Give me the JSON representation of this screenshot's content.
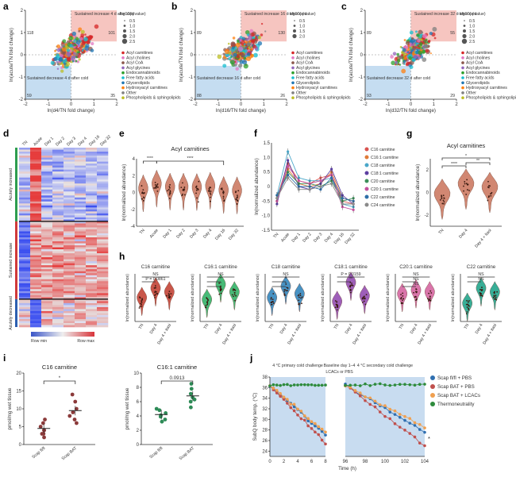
{
  "panel_labels": [
    "a",
    "b",
    "c",
    "d",
    "e",
    "f",
    "g",
    "h",
    "i",
    "j"
  ],
  "colors": {
    "acyl_carnitines": "#d62728",
    "acyl_cholines": "#e377c2",
    "acyl_coa": "#8c564b",
    "acyl_glycines": "#9467bd",
    "endocannabinoids": "#2ca02c",
    "free_fatty_acids": "#17becf",
    "glycerolipids": "#1f77b4",
    "hydroxyacyl_carnitines": "#ff7f0e",
    "other": "#7f7f7f",
    "phospholipids": "#bcbd22",
    "violin": "#c9735a",
    "sustained_box": "#f4b6b0",
    "decrease_box": "#b7d5ee",
    "cold_shade": "#c8dcf0"
  },
  "scatter_panels": [
    {
      "id": "a",
      "xlabel": "ln(d4/TN fold change)",
      "ylabel": "ln(acute/TN fold change)",
      "increase_label": "Sustained increase 4 d after cold",
      "decrease_label": "Sustained decrease 4 d after cold",
      "q_title": "-log10(q value)",
      "q_sizes": [
        "0.5",
        "1.0",
        "1.5",
        "2.0",
        "2.5"
      ],
      "counts": [
        "118",
        "101",
        "59",
        "35"
      ],
      "xticks": [
        "-2",
        "-1",
        "0",
        "1",
        "2"
      ],
      "yticks": [
        "-2",
        "-1",
        "0",
        "1",
        "2"
      ]
    },
    {
      "id": "b",
      "xlabel": "ln(d16/TN fold change)",
      "ylabel": "ln(acute/TN fold change)",
      "increase_label": "Sustained increase 16 d after cold",
      "decrease_label": "Sustained decrease 16 d after cold",
      "q_title": "-log10(q value)",
      "q_sizes": [
        "0.5",
        "1.0",
        "1.5",
        "2.0"
      ],
      "counts": [
        "89",
        "130",
        "88",
        "26"
      ],
      "xticks": [
        "-2",
        "-1",
        "0",
        "1",
        "2"
      ],
      "yticks": [
        "-2",
        "-1",
        "0",
        "1",
        "2"
      ]
    },
    {
      "id": "c",
      "xlabel": "ln(d32/TN fold change)",
      "ylabel": "ln(acute/TN fold change)",
      "increase_label": "Sustained increase 32 d after cold",
      "decrease_label": "Sustained decrease 32 d after cold",
      "q_title": "-log10(q value)",
      "q_sizes": [
        "0.5",
        "1.0",
        "1.5",
        "2.0",
        "2.5"
      ],
      "counts": [
        "89",
        "55",
        "93",
        "29"
      ],
      "xticks": [
        "-2",
        "-1",
        "0",
        "1",
        "2"
      ],
      "yticks": [
        "-2",
        "-1",
        "0",
        "1",
        "2"
      ]
    }
  ],
  "scatter_legend": [
    "Acyl carnitines",
    "Acyl cholines",
    "Acyl CoA",
    "Acyl glycines",
    "Endocannabinoids",
    "Free fatty acids",
    "Glycerolipids",
    "Hydroxyacyl carnitines",
    "Other",
    "Phospholipids & sphingolipids"
  ],
  "heatmap": {
    "columns": [
      "TN",
      "Acute",
      "Day 1",
      "Day 2",
      "Day 3",
      "Day 4",
      "Day 16",
      "Day 32"
    ],
    "groups": [
      "Acutely increased",
      "Sustained increase",
      "Acutely decreased"
    ],
    "legend_min": "Row min",
    "legend_max": "Row max"
  },
  "panel_e": {
    "title": "Acyl carnitines",
    "ylabel": "ln(normalized abundance)",
    "categories": [
      "TN",
      "Acute",
      "Day 1",
      "Day 2",
      "Day 3",
      "Day 4",
      "Day 16",
      "Day 32"
    ],
    "means": [
      -0.1,
      0.45,
      0.1,
      0.1,
      0.05,
      0.2,
      -0.3,
      -0.35
    ],
    "sig": [
      "****",
      "****"
    ],
    "yticks": [
      "-4",
      "-2",
      "0",
      "2",
      "4"
    ]
  },
  "panel_f": {
    "ylabel": "ln(normalized abundance)",
    "categories": [
      "TN",
      "Acute",
      "Day 1",
      "Day 2",
      "Day 3",
      "Day 4",
      "Day 16",
      "Day 32"
    ],
    "yticks": [
      "-1.5",
      "-1.0",
      "-0.5",
      "0",
      "0.5",
      "1.0",
      "1.5"
    ],
    "series": [
      {
        "name": "C16 carnitine",
        "values": [
          -0.4,
          0.8,
          0.2,
          0.1,
          0.3,
          0.4,
          -0.5,
          -0.6
        ]
      },
      {
        "name": "C16:1 carnitine",
        "values": [
          -0.5,
          0.6,
          0.1,
          0.0,
          0.1,
          0.5,
          -0.4,
          -0.5
        ]
      },
      {
        "name": "C18 carnitine",
        "values": [
          -0.3,
          1.2,
          0.3,
          0.2,
          0.2,
          0.3,
          -0.6,
          -0.7
        ]
      },
      {
        "name": "C18:1 carnitine",
        "values": [
          -0.6,
          0.9,
          0.0,
          -0.1,
          0.1,
          0.6,
          -0.3,
          -0.6
        ]
      },
      {
        "name": "C20 carnitine",
        "values": [
          -0.4,
          0.5,
          0.1,
          0.1,
          0.0,
          0.2,
          -0.5,
          -0.4
        ]
      },
      {
        "name": "C20:1 carnitine",
        "values": [
          -0.5,
          0.7,
          0.2,
          0.1,
          0.2,
          0.4,
          -0.7,
          -0.8
        ]
      },
      {
        "name": "C22 carnitine",
        "values": [
          -0.3,
          0.4,
          0.0,
          0.0,
          -0.1,
          0.3,
          -0.4,
          -0.5
        ]
      },
      {
        "name": "C24 carnitine",
        "values": [
          -0.4,
          0.3,
          -0.1,
          -0.1,
          0.0,
          0.1,
          -0.6,
          -0.6
        ]
      }
    ],
    "series_colors": [
      "#d9534f",
      "#e07b39",
      "#4aa7c9",
      "#5c3fa0",
      "#3d8f5a",
      "#c4509d",
      "#2e6fa8",
      "#8a8a8a"
    ]
  },
  "panel_g": {
    "title": "Acyl carnitines",
    "ylabel": "ln(normalized abundance)",
    "categories": [
      "TN",
      "Day 4",
      "Day 4 + Itasi"
    ],
    "means": [
      -0.6,
      0.3,
      0.0
    ],
    "sig": [
      "****",
      "**",
      "*"
    ],
    "yticks": [
      "-2",
      "0",
      "2"
    ]
  },
  "panel_h": {
    "ylabel": "ln(normalized abundance)",
    "categories": [
      "TN",
      "Day 4",
      "Day 4 + Itasi"
    ],
    "subplots": [
      {
        "title": "C16 carnitine",
        "color": "#c0392b",
        "means": [
          -0.2,
          0.3,
          0.1
        ],
        "sig": [
          "NS",
          "P = 0.0861"
        ]
      },
      {
        "title": "C16:1 carnitine",
        "color": "#27ae60",
        "means": [
          -0.3,
          0.5,
          0.1
        ],
        "sig": [
          "NS",
          "*",
          "*"
        ]
      },
      {
        "title": "C18 carnitine",
        "color": "#2980b9",
        "means": [
          -0.2,
          0.4,
          0.0
        ],
        "sig": [
          "NS",
          "*",
          "*"
        ]
      },
      {
        "title": "C18:1 carnitine",
        "color": "#8e44ad",
        "means": [
          -0.4,
          0.6,
          -0.1
        ],
        "sig": [
          "P = 0.0159",
          "**"
        ]
      },
      {
        "title": "C20:1 carnitine",
        "color": "#d35e9c",
        "means": [
          0.0,
          0.2,
          0.1
        ],
        "sig": [
          "NS",
          "NS",
          "NS"
        ]
      },
      {
        "title": "C22 carnitine",
        "color": "#16a085",
        "means": [
          -0.5,
          0.3,
          0.1
        ],
        "sig": [
          "NS",
          "NS"
        ]
      }
    ]
  },
  "panel_i": {
    "subplots": [
      {
        "title": "C16 carnitine",
        "ylabel": "pmol/mg wet tissue",
        "categories": [
          "Scap fl/fl",
          "Scap BAT"
        ],
        "color": "#8b3a3a",
        "yticks": [
          "0",
          "5",
          "10",
          "15",
          "20"
        ],
        "means": [
          4.5,
          9.5
        ],
        "points": [
          [
            3,
            4,
            2,
            5,
            6,
            4,
            7,
            3
          ],
          [
            6,
            8,
            12,
            9,
            14,
            7,
            10
          ]
        ],
        "sig": "*"
      },
      {
        "title": "C16:1 carnitine",
        "ylabel": "pmol/mg wet tissue",
        "categories": [
          "Scap fl/fl",
          "Scap BAT"
        ],
        "color": "#2e8b57",
        "yticks": [
          "0",
          "2",
          "4",
          "6",
          "8",
          "10"
        ],
        "means": [
          4.2,
          6.8
        ],
        "points": [
          [
            3.5,
            4.1,
            4.8,
            3.2,
            5.0,
            4.4,
            3.9
          ],
          [
            5.2,
            6.3,
            7.8,
            8.5,
            6.0,
            7.1,
            6.6
          ]
        ],
        "sig": "0.0913"
      }
    ]
  },
  "panel_j": {
    "xlabel": "Time (h)",
    "ylabel": "SubQ body temp. (°C)",
    "yticks": [
      "24",
      "26",
      "28",
      "30",
      "32",
      "34",
      "36",
      "38"
    ],
    "xticks_left": [
      "0",
      "2",
      "4",
      "6",
      "8"
    ],
    "xticks_right": [
      "96",
      "98",
      "100",
      "102",
      "104"
    ],
    "primary_label": "4 °C primary cold challenge",
    "baseline_label": "Baseline day 1–4",
    "secondary_label": "4 °C secondary cold challenge",
    "lcac_label": "LCACs or PBS",
    "series": [
      {
        "name": "Scap fl/fl + PBS",
        "color": "#2f6fb0"
      },
      {
        "name": "Scap BAT + PBS",
        "color": "#c0504d"
      },
      {
        "name": "Scap BAT + LCACs",
        "color": "#f0a050"
      },
      {
        "name": "Thermoneutrality",
        "color": "#2e8b3c"
      }
    ],
    "sig": "*"
  }
}
